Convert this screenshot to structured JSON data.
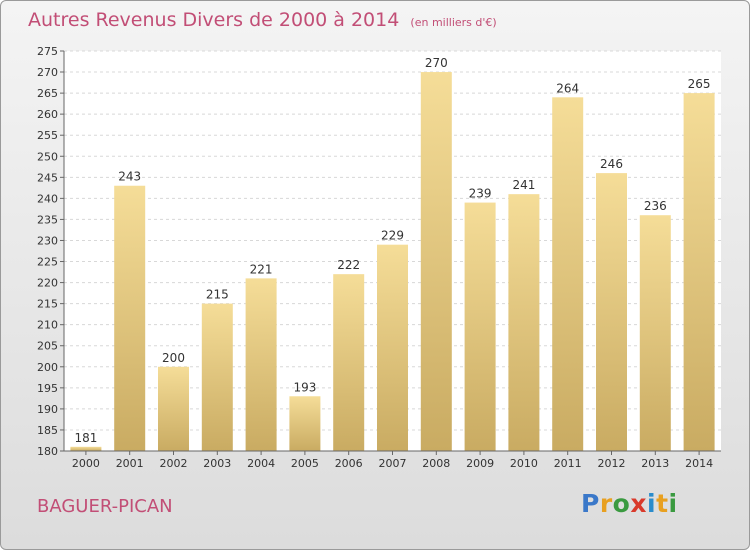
{
  "header": {
    "title": "Autres Revenus Divers de 2000 à 2014",
    "subtitle": "(en milliers d'€)"
  },
  "footer": {
    "city": "BAGUER-PICAN",
    "logo_letters": [
      "P",
      "r",
      "o",
      "x",
      "i",
      "t",
      "i"
    ]
  },
  "colors": {
    "title": "#c24e76",
    "bar_light": "#f5dd98",
    "bar_dark": "#c9ab62",
    "logo": [
      "#3a78c9",
      "#e8a020",
      "#3a9a40",
      "#d93a2b",
      "#2a8ccc",
      "#e8a020",
      "#3a9a40"
    ]
  },
  "chart_data": {
    "type": "bar",
    "categories": [
      "2000",
      "2001",
      "2002",
      "2003",
      "2004",
      "2005",
      "2006",
      "2007",
      "2008",
      "2009",
      "2010",
      "2011",
      "2012",
      "2013",
      "2014"
    ],
    "values": [
      181,
      243,
      200,
      215,
      221,
      193,
      222,
      229,
      270,
      239,
      241,
      264,
      246,
      236,
      265
    ],
    "ylim": [
      180,
      275
    ],
    "yticks": [
      180,
      185,
      190,
      195,
      200,
      205,
      210,
      215,
      220,
      225,
      230,
      235,
      240,
      245,
      250,
      255,
      260,
      265,
      270,
      275
    ],
    "grid": true,
    "legend": "none"
  }
}
